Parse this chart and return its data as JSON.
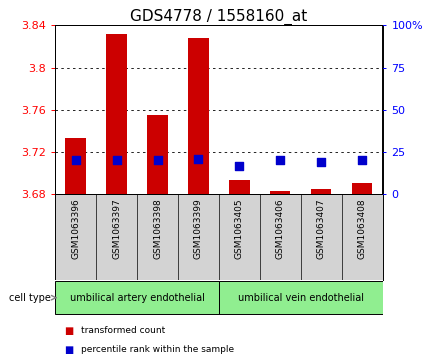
{
  "title": "GDS4778 / 1558160_at",
  "samples": [
    "GSM1063396",
    "GSM1063397",
    "GSM1063398",
    "GSM1063399",
    "GSM1063405",
    "GSM1063406",
    "GSM1063407",
    "GSM1063408"
  ],
  "transformed_counts": [
    3.733,
    3.832,
    3.755,
    3.828,
    3.693,
    3.683,
    3.685,
    3.691
  ],
  "percentile_ranks": [
    20,
    20,
    20,
    21,
    17,
    20,
    19,
    20
  ],
  "ylim_left": [
    3.68,
    3.84
  ],
  "ylim_right": [
    0,
    100
  ],
  "yticks_left": [
    3.68,
    3.72,
    3.76,
    3.8,
    3.84
  ],
  "yticks_right": [
    0,
    25,
    50,
    75,
    100
  ],
  "ytick_labels_right": [
    "0",
    "25",
    "50",
    "75",
    "100%"
  ],
  "cell_types": [
    {
      "label": "umbilical artery endothelial",
      "start": 0,
      "end": 4
    },
    {
      "label": "umbilical vein endothelial",
      "start": 4,
      "end": 8
    }
  ],
  "cell_type_label": "cell type",
  "bar_color": "#cc0000",
  "dot_color": "#0000cc",
  "bar_width": 0.5,
  "dot_size": 40,
  "baseline": 3.68,
  "bg_color": "#ffffff",
  "sample_bg_color": "#d3d3d3",
  "cell_type_bg_color": "#90ee90",
  "legend_red_label": "transformed count",
  "legend_blue_label": "percentile rank within the sample",
  "title_fontsize": 11,
  "tick_fontsize": 8,
  "label_fontsize": 6.5
}
